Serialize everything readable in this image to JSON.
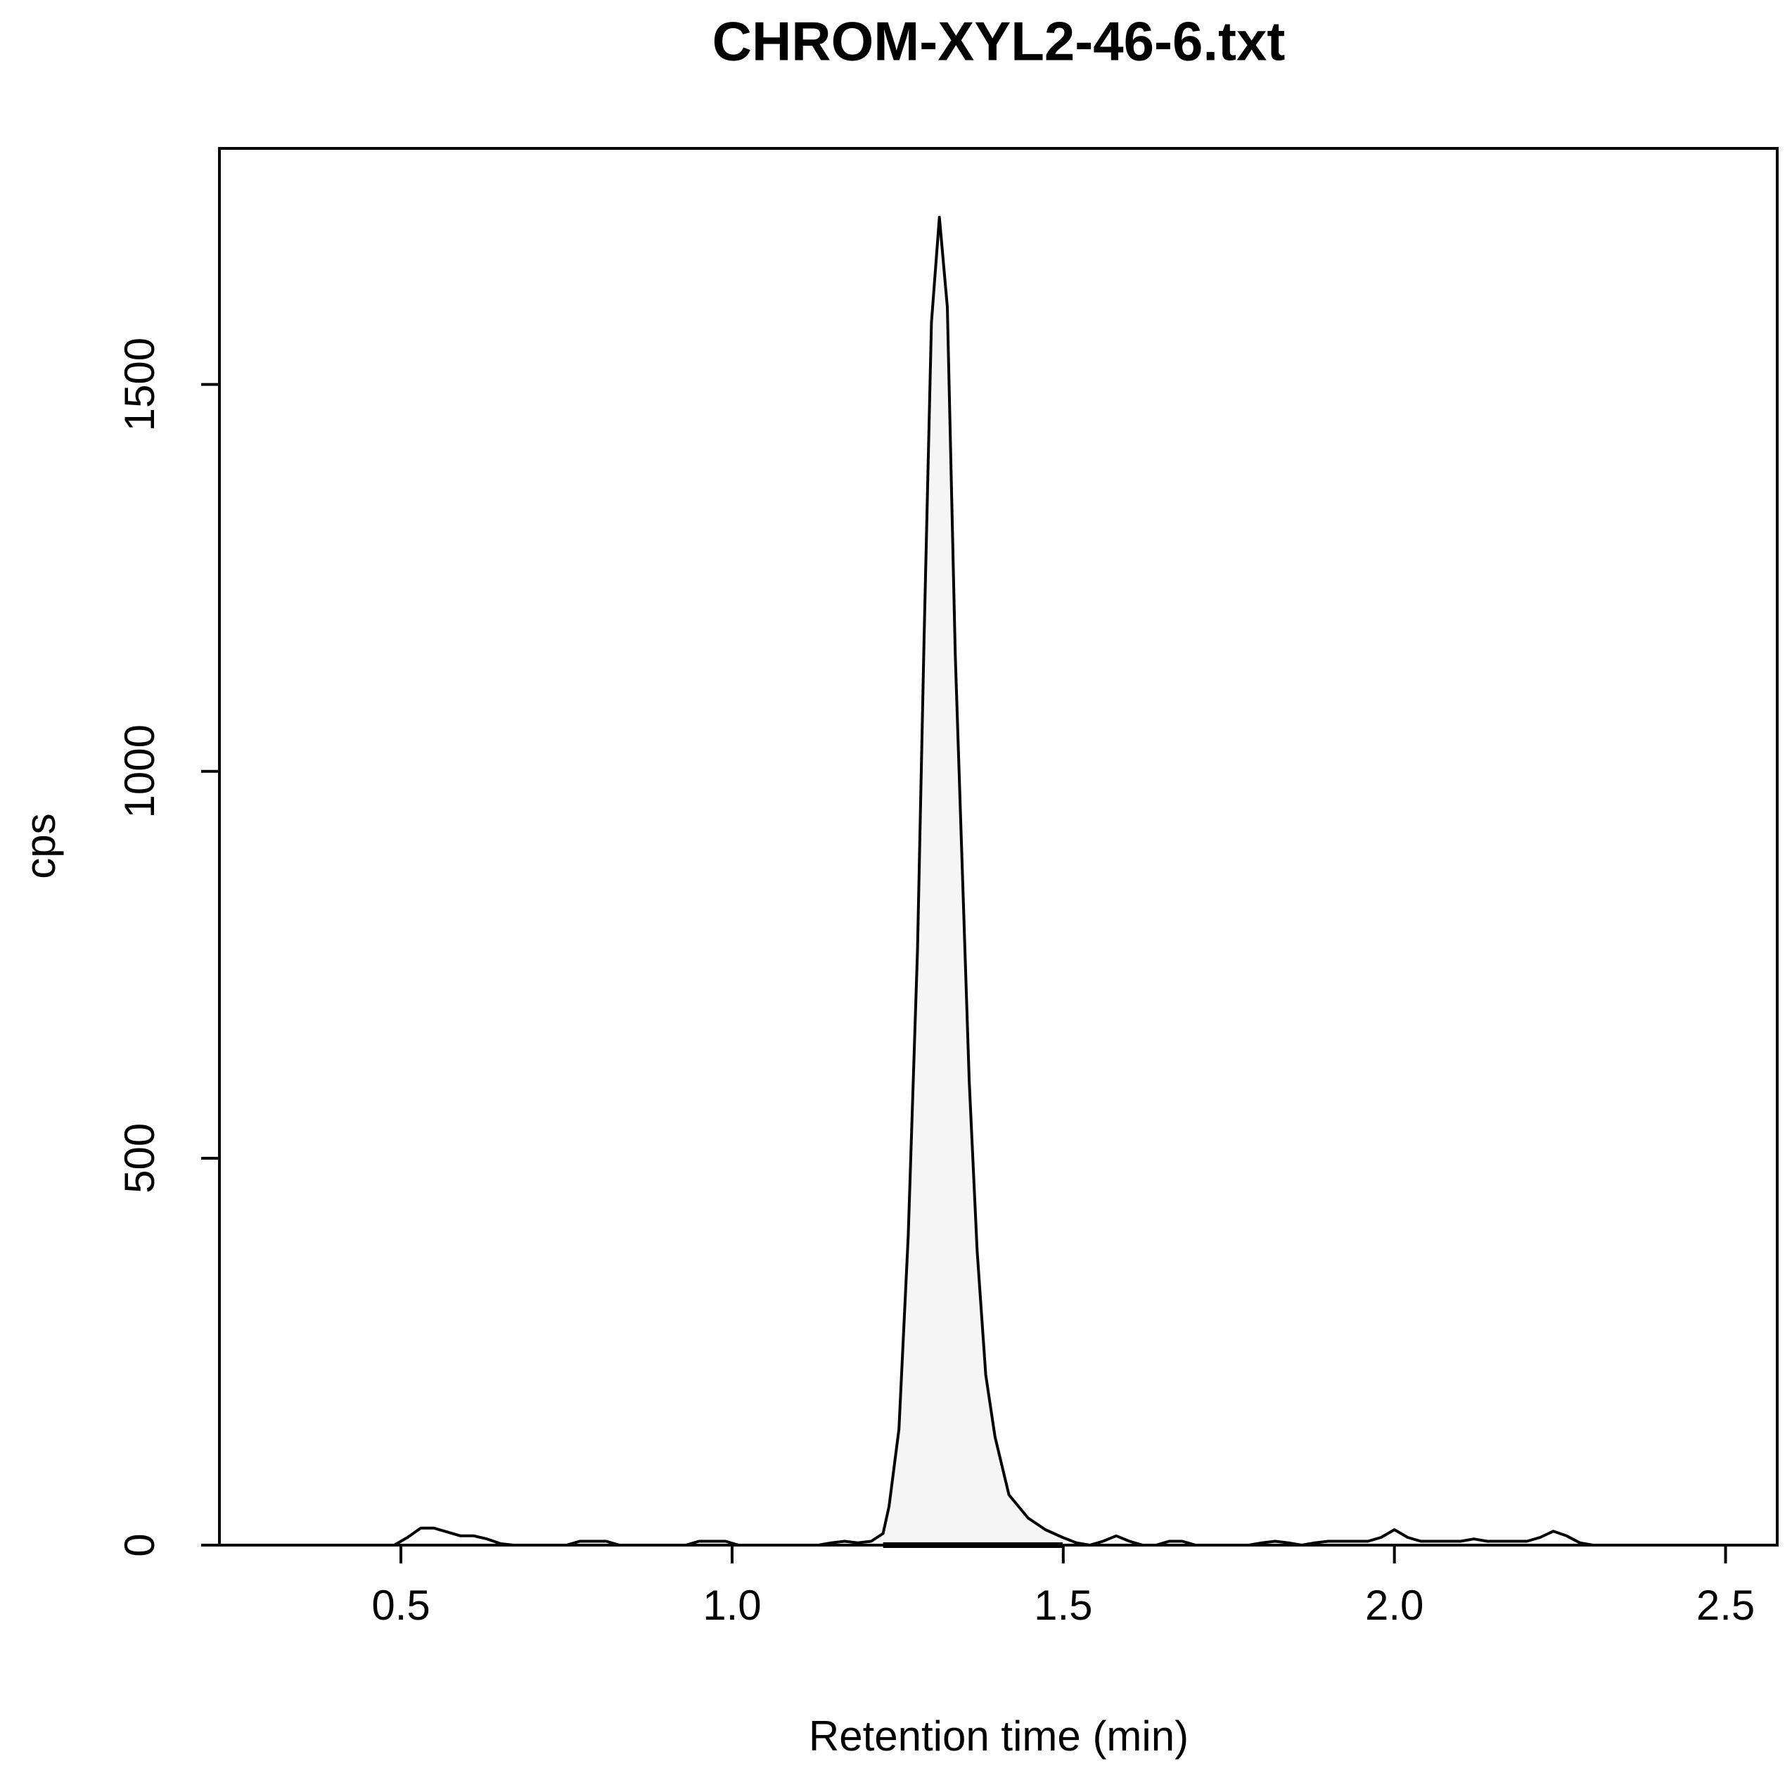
{
  "chart_data": {
    "type": "line",
    "title": "CHROM-XYL2-46-6.txt",
    "xlabel": "Retention time (min)",
    "ylabel": "cps",
    "xlim": [
      0.226,
      2.578
    ],
    "ylim": [
      0,
      1805
    ],
    "xticks": [
      0.5,
      {
        "value": 1,
        "label": "1.0"
      },
      1.5,
      {
        "value": 2,
        "label": "2.0"
      },
      2.5
    ],
    "yticks": [
      0,
      500,
      1000,
      1500
    ],
    "color": "#000000",
    "fill_color": "#f5f5f5",
    "fill_xlim": [
      1.228,
      1.499
    ],
    "x": [
      0.47,
      0.49,
      0.51,
      0.53,
      0.55,
      0.57,
      0.59,
      0.61,
      0.63,
      0.65,
      0.67,
      0.75,
      0.77,
      0.79,
      0.81,
      0.83,
      0.93,
      0.95,
      0.97,
      0.99,
      1.01,
      1.13,
      1.15,
      1.17,
      1.19,
      1.21,
      1.228,
      1.237,
      1.252,
      1.266,
      1.28,
      1.29,
      1.301,
      1.313,
      1.325,
      1.337,
      1.358,
      1.37,
      1.383,
      1.397,
      1.418,
      1.447,
      1.473,
      1.499,
      1.52,
      1.54,
      1.56,
      1.58,
      1.6,
      1.62,
      1.64,
      1.66,
      1.68,
      1.7,
      1.72,
      1.78,
      1.8,
      1.82,
      1.84,
      1.86,
      1.88,
      1.9,
      1.92,
      1.94,
      1.96,
      1.98,
      2.0,
      2.02,
      2.04,
      2.06,
      2.08,
      2.1,
      2.12,
      2.14,
      2.16,
      2.18,
      2.2,
      2.22,
      2.24,
      2.26,
      2.28,
      2.3,
      2.32
    ],
    "values": [
      0,
      0,
      10,
      22,
      22,
      17,
      12,
      12,
      8,
      2,
      0,
      0,
      5,
      5,
      5,
      0,
      0,
      5,
      5,
      5,
      0,
      0,
      3,
      5,
      3,
      5,
      15,
      50,
      150,
      400,
      770,
      1175,
      1580,
      1716,
      1600,
      1150,
      600,
      380,
      220,
      140,
      65,
      35,
      20,
      10,
      3,
      0,
      5,
      12,
      5,
      0,
      0,
      5,
      5,
      0,
      0,
      0,
      3,
      5,
      3,
      0,
      3,
      5,
      5,
      5,
      5,
      10,
      20,
      10,
      5,
      5,
      5,
      5,
      8,
      5,
      5,
      5,
      5,
      10,
      18,
      12,
      3,
      0,
      0
    ]
  }
}
